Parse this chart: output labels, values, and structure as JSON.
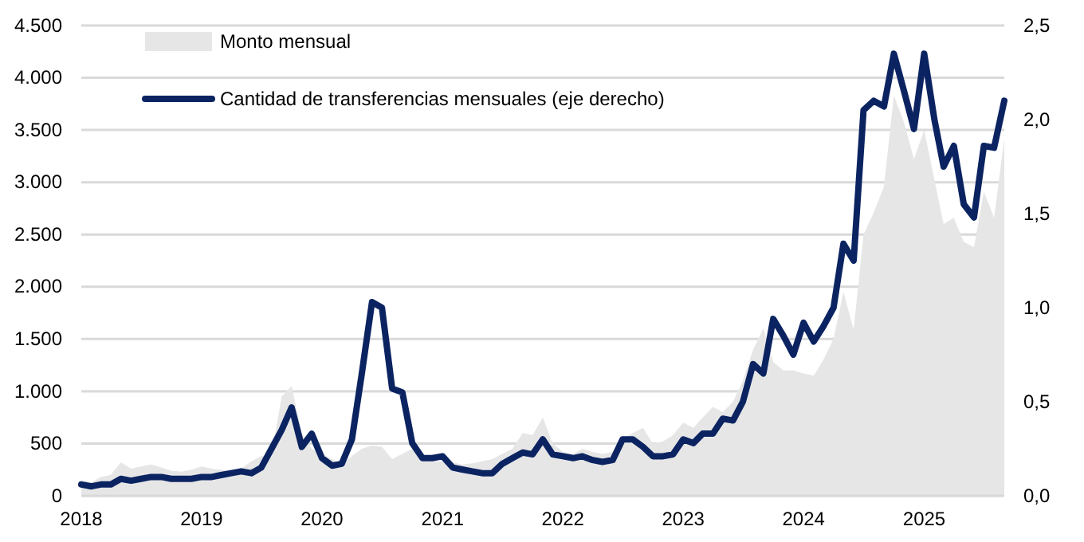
{
  "chart_data": {
    "type": "area",
    "x": [
      "2018-01",
      "2018-02",
      "2018-03",
      "2018-04",
      "2018-05",
      "2018-06",
      "2018-07",
      "2018-08",
      "2018-09",
      "2018-10",
      "2018-11",
      "2018-12",
      "2019-01",
      "2019-02",
      "2019-03",
      "2019-04",
      "2019-05",
      "2019-06",
      "2019-07",
      "2019-08",
      "2019-09",
      "2019-10",
      "2019-11",
      "2019-12",
      "2020-01",
      "2020-02",
      "2020-03",
      "2020-04",
      "2020-05",
      "2020-06",
      "2020-07",
      "2020-08",
      "2020-09",
      "2020-10",
      "2020-11",
      "2020-12",
      "2021-01",
      "2021-02",
      "2021-03",
      "2021-04",
      "2021-05",
      "2021-06",
      "2021-07",
      "2021-08",
      "2021-09",
      "2021-10",
      "2021-11",
      "2021-12",
      "2022-01",
      "2022-02",
      "2022-03",
      "2022-04",
      "2022-05",
      "2022-06",
      "2022-07",
      "2022-08",
      "2022-09",
      "2022-10",
      "2022-11",
      "2022-12",
      "2023-01",
      "2023-02",
      "2023-03",
      "2023-04",
      "2023-05",
      "2023-06",
      "2023-07",
      "2023-08",
      "2023-09",
      "2023-10",
      "2023-11",
      "2023-12",
      "2024-01",
      "2024-02",
      "2024-03",
      "2024-04",
      "2024-05",
      "2024-06",
      "2024-07",
      "2024-08",
      "2024-09",
      "2024-10",
      "2024-11",
      "2024-12",
      "2025-01",
      "2025-02",
      "2025-03",
      "2025-04",
      "2025-05",
      "2025-06",
      "2025-07",
      "2025-08",
      "2025-09"
    ],
    "series": [
      {
        "name": "Monto mensual",
        "color": "#e6e6e6",
        "values": [
          150,
          130,
          180,
          200,
          320,
          260,
          280,
          300,
          270,
          240,
          230,
          250,
          280,
          260,
          250,
          230,
          260,
          330,
          380,
          400,
          950,
          1050,
          600,
          450,
          400,
          350,
          300,
          380,
          450,
          480,
          470,
          350,
          400,
          450,
          380,
          330,
          330,
          320,
          300,
          310,
          330,
          350,
          400,
          450,
          600,
          580,
          750,
          500,
          420,
          400,
          450,
          420,
          400,
          420,
          550,
          600,
          650,
          500,
          520,
          580,
          700,
          650,
          750,
          850,
          800,
          900,
          1100,
          1400,
          1600,
          1280,
          1200,
          1200,
          1170,
          1150,
          1300,
          1500,
          1950,
          1590,
          2500,
          2710,
          2960,
          3830,
          3570,
          3220,
          3500,
          3020,
          2600,
          2660,
          2430,
          2380,
          2910,
          2660,
          3420
        ]
      },
      {
        "name": "Cantidad de transferencias mensuales (eje derecho)",
        "type": "line",
        "axis": "y2",
        "color": "#0b2461",
        "values": [
          0.06,
          0.05,
          0.06,
          0.06,
          0.09,
          0.08,
          0.09,
          0.1,
          0.1,
          0.09,
          0.09,
          0.09,
          0.1,
          0.1,
          0.11,
          0.12,
          0.13,
          0.12,
          0.15,
          0.25,
          0.35,
          0.47,
          0.26,
          0.33,
          0.2,
          0.16,
          0.17,
          0.3,
          0.65,
          1.03,
          1.0,
          0.57,
          0.55,
          0.28,
          0.2,
          0.2,
          0.21,
          0.15,
          0.14,
          0.13,
          0.12,
          0.12,
          0.17,
          0.2,
          0.23,
          0.22,
          0.3,
          0.22,
          0.21,
          0.2,
          0.21,
          0.19,
          0.18,
          0.19,
          0.3,
          0.3,
          0.26,
          0.21,
          0.21,
          0.22,
          0.3,
          0.28,
          0.33,
          0.33,
          0.41,
          0.4,
          0.5,
          0.7,
          0.65,
          0.94,
          0.85,
          0.75,
          0.92,
          0.82,
          0.9,
          1.0,
          1.34,
          1.25,
          2.05,
          2.1,
          2.07,
          2.35,
          2.15,
          1.95,
          2.35,
          2.0,
          1.75,
          1.86,
          1.55,
          1.48,
          1.86,
          1.85,
          2.1
        ]
      }
    ],
    "xlim": [
      "2018-01",
      "2025-09"
    ],
    "xticks": [
      {
        "value": "2018",
        "label": "2018"
      },
      {
        "value": "2019",
        "label": "2019"
      },
      {
        "value": "2020",
        "label": "2020"
      },
      {
        "value": "2021",
        "label": "2021"
      },
      {
        "value": "2022",
        "label": "2022"
      },
      {
        "value": "2023",
        "label": "2023"
      },
      {
        "value": "2024",
        "label": "2024"
      },
      {
        "value": "2025",
        "label": "2025"
      }
    ],
    "ylim": [
      0,
      4500
    ],
    "yticks": [
      0,
      {
        "value": 500,
        "label": "500"
      },
      {
        "value": 1000,
        "label": "1.000"
      },
      {
        "value": 1500,
        "label": "1.500"
      },
      {
        "value": 2000,
        "label": "2.000"
      },
      {
        "value": 2500,
        "label": "2.500"
      },
      {
        "value": 3000,
        "label": "3.000"
      },
      {
        "value": 3500,
        "label": "3.500"
      },
      {
        "value": 4000,
        "label": "4.000"
      },
      {
        "value": 4500,
        "label": "4.500"
      }
    ],
    "y2lim": [
      0,
      2.5
    ],
    "y2ticks": [
      {
        "value": 0,
        "label": "0,0"
      },
      {
        "value": 0.5,
        "label": "0,5"
      },
      {
        "value": 1,
        "label": "1,0"
      },
      {
        "value": 1.5,
        "label": "1,5"
      },
      {
        "value": 2,
        "label": "2,0"
      },
      {
        "value": 2.5,
        "label": "2,5"
      }
    ],
    "grid": "y",
    "legend": "top left",
    "line_style": "solid"
  }
}
